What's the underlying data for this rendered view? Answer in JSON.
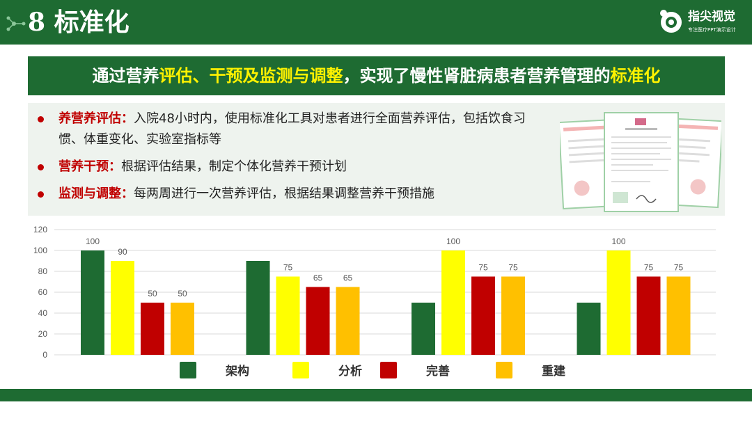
{
  "header": {
    "title": "8 标准化",
    "brand": "指尖视觉",
    "brand_sub": "专注医疗PPT演示设计"
  },
  "banner": [
    {
      "text": "通过营养",
      "hl": false
    },
    {
      "text": "评估、干预及监测与调整",
      "hl": true
    },
    {
      "text": "，实现了慢性肾脏病患者营养管理的",
      "hl": false
    },
    {
      "text": "标准化",
      "hl": true
    }
  ],
  "bullets": [
    {
      "label": "养营养评估：",
      "text": "入院48小时内，使用标准化工具对患者进行全面营养评估，包括饮食习惯、体重变化、实验室指标等"
    },
    {
      "label": "营养干预：",
      "text": "根据评估结果，制定个体化营养干预计划"
    },
    {
      "label": "监测与调整：",
      "text": "每两周进行一次营养评估，根据结果调整营养干预措施"
    }
  ],
  "colors": {
    "header_green": "#1e6b32",
    "highlight": "#fff200",
    "bullet_red": "#c00000",
    "panel_bg": "#eef3ee"
  },
  "icons": [
    "dots-icon",
    "logo-icon",
    "certificate-image"
  ],
  "chart_data": {
    "type": "bar",
    "categories": [
      "",
      "",
      "",
      ""
    ],
    "series": [
      {
        "name": "架构",
        "color": "#1e6b32",
        "values": [
          100,
          90,
          50,
          50
        ]
      },
      {
        "name": "分析",
        "color": "#ffff00",
        "values": [
          90,
          75,
          100,
          100
        ]
      },
      {
        "name": "完善",
        "color": "#c00000",
        "values": [
          50,
          65,
          75,
          75
        ]
      },
      {
        "name": "重建",
        "color": "#ffc000",
        "values": [
          50,
          65,
          75,
          75
        ]
      }
    ],
    "ylim": [
      0,
      120
    ],
    "yticks": [
      0,
      20,
      40,
      60,
      80,
      100,
      120
    ],
    "grid": true,
    "legend": "bottom",
    "data_labels": true
  }
}
